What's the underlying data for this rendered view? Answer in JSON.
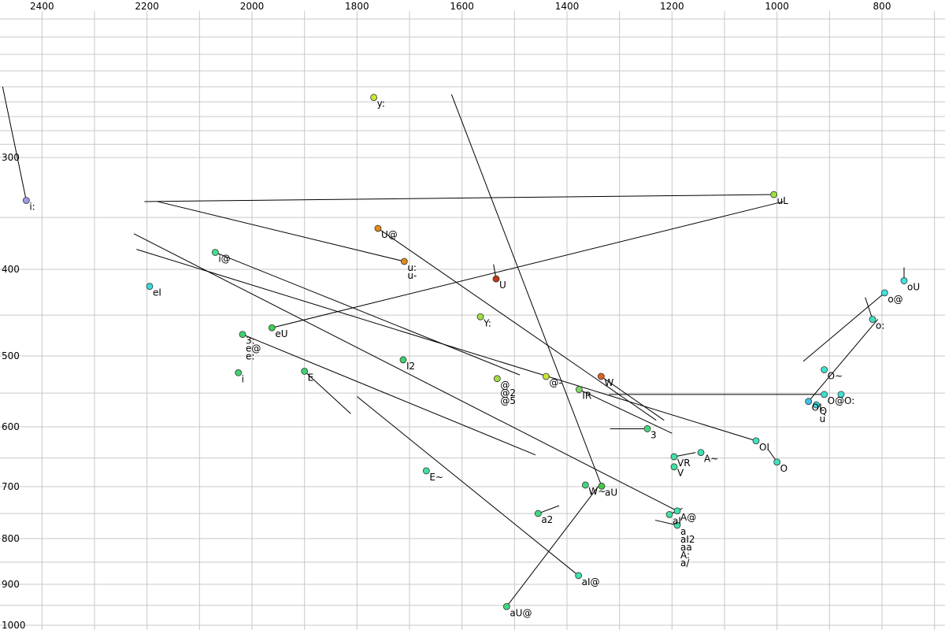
{
  "chart_data": {
    "type": "scatter",
    "title": "",
    "xlabel": "",
    "ylabel": "",
    "x_axis": {
      "reversed": true,
      "range": [
        2480,
        680
      ],
      "tick_labels": [
        "2400",
        "2200",
        "2000",
        "1800",
        "1600",
        "1400",
        "1200",
        "1000",
        "800"
      ],
      "tick_values": [
        2400,
        2200,
        2000,
        1800,
        1600,
        1400,
        1200,
        1000,
        800
      ],
      "minor_step": 100,
      "position": "top"
    },
    "y_axis": {
      "scale": "log",
      "range": [
        200,
        1000
      ],
      "tick_labels": [
        "300",
        "400",
        "500",
        "600",
        "700",
        "800",
        "900",
        "1000"
      ],
      "tick_values": [
        300,
        400,
        500,
        600,
        700,
        800,
        900,
        1000
      ],
      "minor_values": [
        210,
        220,
        230,
        240,
        250,
        260,
        270,
        280,
        290,
        350,
        450,
        550,
        650,
        750,
        850,
        950
      ],
      "position": "left"
    },
    "grid": true,
    "points": [
      {
        "label": "i:",
        "x": 2430,
        "y": 335,
        "color": "#9a9ae8",
        "end": [
          2475,
          250
        ]
      },
      {
        "label": "y:",
        "x": 1768,
        "y": 257,
        "color": "#c8e830"
      },
      {
        "label": "uL",
        "x": 1006,
        "y": 330,
        "color": "#a0e040",
        "end": [
          2205,
          336
        ]
      },
      {
        "label": "U@",
        "x": 1760,
        "y": 360,
        "color": "#e08a1a",
        "end": [
          1230,
          590
        ]
      },
      {
        "label": "u:",
        "x": 1710,
        "y": 392,
        "color": "#e08a1a",
        "end": [
          2180,
          336
        ]
      },
      {
        "label": "u-",
        "x": 1710,
        "y": 392,
        "color": "#e08a1a"
      },
      {
        "label": "i@",
        "x": 2070,
        "y": 383,
        "color": "#40e090",
        "end": [
          1490,
          525
        ]
      },
      {
        "label": "U",
        "x": 1535,
        "y": 410,
        "color": "#c03818",
        "end": [
          1540,
          395
        ]
      },
      {
        "label": "eI",
        "x": 2195,
        "y": 418,
        "color": "#40d8d8"
      },
      {
        "label": "eU",
        "x": 1962,
        "y": 465,
        "color": "#40d050",
        "end": [
          988,
          336
        ]
      },
      {
        "label": "Y:",
        "x": 1565,
        "y": 452,
        "color": "#a0e040"
      },
      {
        "label": "3:",
        "x": 2018,
        "y": 473,
        "color": "#40d070",
        "end": [
          1460,
          645
        ]
      },
      {
        "label": "e@",
        "x": 2018,
        "y": 473,
        "color": "#40d070"
      },
      {
        "label": "e:",
        "x": 2018,
        "y": 473,
        "color": "#40d070"
      },
      {
        "label": "I2",
        "x": 1712,
        "y": 505,
        "color": "#40d070"
      },
      {
        "label": "i",
        "x": 2026,
        "y": 522,
        "color": "#40d070"
      },
      {
        "label": "E",
        "x": 1900,
        "y": 520,
        "color": "#40d070",
        "end": [
          1812,
          580
        ]
      },
      {
        "label": "@",
        "x": 1533,
        "y": 530,
        "color": "#a0e040"
      },
      {
        "label": "@2",
        "x": 1533,
        "y": 530,
        "color": "#a0e040"
      },
      {
        "label": "@5",
        "x": 1533,
        "y": 530,
        "color": "#a0e040"
      },
      {
        "label": "@-",
        "x": 1440,
        "y": 527,
        "color": "#c8e830"
      },
      {
        "label": "W",
        "x": 1335,
        "y": 527,
        "color": "#e06020",
        "end": [
          1215,
          590
        ]
      },
      {
        "label": "IR",
        "x": 1377,
        "y": 545,
        "color": "#80d860",
        "end": [
          1200,
          610
        ]
      },
      {
        "label": "3",
        "x": 1247,
        "y": 603,
        "color": "#40d880",
        "end": [
          1318,
          603
        ]
      },
      {
        "label": "A~",
        "x": 1145,
        "y": 641,
        "color": "#40e0b0"
      },
      {
        "label": "VR",
        "x": 1196,
        "y": 648,
        "color": "#40e0a0",
        "end": [
          1155,
          641
        ]
      },
      {
        "label": "V",
        "x": 1196,
        "y": 665,
        "color": "#40e0a0"
      },
      {
        "label": "OI",
        "x": 1040,
        "y": 622,
        "color": "#40e0c0",
        "end": [
          2220,
          380
        ]
      },
      {
        "label": "O",
        "x": 1000,
        "y": 657,
        "color": "#40e0c0",
        "end": [
          1016,
          637
        ]
      },
      {
        "label": "E~",
        "x": 1668,
        "y": 672,
        "color": "#40e0a0"
      },
      {
        "label": "W~",
        "x": 1365,
        "y": 697,
        "color": "#40d880"
      },
      {
        "label": "aU",
        "x": 1334,
        "y": 699,
        "color": "#40c840",
        "end": [
          1620,
          255
        ]
      },
      {
        "label": "a2",
        "x": 1455,
        "y": 750,
        "color": "#40d880",
        "end": [
          1415,
          735
        ]
      },
      {
        "label": "aI",
        "x": 1205,
        "y": 752,
        "color": "#40e0a0",
        "end": [
          1180,
          740
        ]
      },
      {
        "label": "A@",
        "x": 1190,
        "y": 745,
        "color": "#40e0b0",
        "end": [
          2225,
          365
        ]
      },
      {
        "label": "a",
        "x": 1190,
        "y": 773,
        "color": "#40e0b0",
        "end": [
          1232,
          763
        ]
      },
      {
        "label": "aI2",
        "x": 1190,
        "y": 773,
        "color": "#40e0b0"
      },
      {
        "label": "aa",
        "x": 1190,
        "y": 773,
        "color": "#40e0b0"
      },
      {
        "label": "A:",
        "x": 1190,
        "y": 773,
        "color": "#40e0b0"
      },
      {
        "label": "a/",
        "x": 1190,
        "y": 773,
        "color": "#40e0b0"
      },
      {
        "label": "aI@",
        "x": 1378,
        "y": 880,
        "color": "#40e0b0",
        "end": [
          1800,
          555
        ]
      },
      {
        "label": "aU@",
        "x": 1515,
        "y": 953,
        "color": "#40d880",
        "end": [
          1340,
          699
        ]
      },
      {
        "label": "oU",
        "x": 758,
        "y": 412,
        "color": "#40e0e0",
        "end": [
          758,
          398
        ]
      },
      {
        "label": "o@",
        "x": 795,
        "y": 425,
        "color": "#40e0e0",
        "end": [
          950,
          507
        ]
      },
      {
        "label": "o:",
        "x": 818,
        "y": 455,
        "color": "#40e0c0",
        "end": [
          832,
          430
        ]
      },
      {
        "label": "O~",
        "x": 910,
        "y": 518,
        "color": "#40e0d0"
      },
      {
        "label": "O@",
        "x": 910,
        "y": 552,
        "color": "#40e0d0",
        "end": [
          1320,
          552
        ]
      },
      {
        "label": "O:",
        "x": 878,
        "y": 552,
        "color": "#40e0d0"
      },
      {
        "label": "OL",
        "x": 940,
        "y": 562,
        "color": "#40c0e8",
        "end": [
          808,
          455
        ]
      },
      {
        "label": "Q",
        "x": 925,
        "y": 567,
        "color": "#40e0e0"
      },
      {
        "label": "u",
        "x": 925,
        "y": 567,
        "color": "#40e0e0"
      }
    ]
  }
}
